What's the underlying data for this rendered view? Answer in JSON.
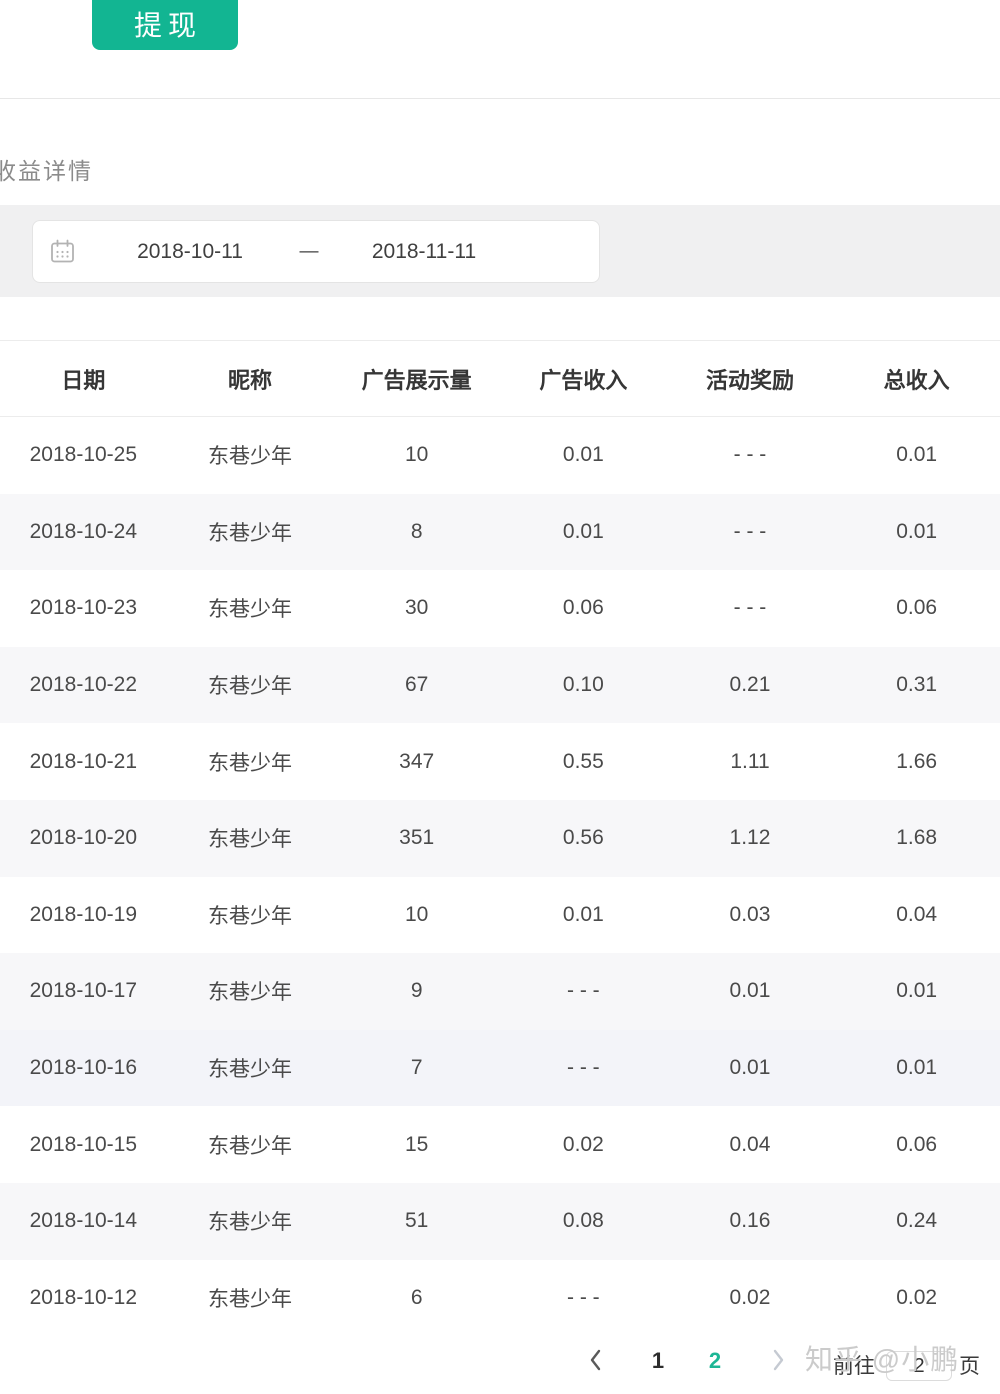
{
  "header": {
    "withdraw_button": "提现",
    "section_title": "收益详情"
  },
  "date_filter": {
    "start": "2018-10-11",
    "separator": "—",
    "end": "2018-11-11",
    "icon": "calendar-icon"
  },
  "table": {
    "columns": [
      "日期",
      "昵称",
      "广告展示量",
      "广告收入",
      "活动奖励",
      "总收入"
    ],
    "rows": [
      {
        "date": "2018-10-25",
        "nickname": "东巷少年",
        "impressions": "10",
        "ad_income": "0.01",
        "activity_reward": "- - -",
        "total_income": "0.01",
        "bg": "#ffffff"
      },
      {
        "date": "2018-10-24",
        "nickname": "东巷少年",
        "impressions": "8",
        "ad_income": "0.01",
        "activity_reward": "- - -",
        "total_income": "0.01",
        "bg": "#f7f7f9"
      },
      {
        "date": "2018-10-23",
        "nickname": "东巷少年",
        "impressions": "30",
        "ad_income": "0.06",
        "activity_reward": "- - -",
        "total_income": "0.06",
        "bg": "#ffffff"
      },
      {
        "date": "2018-10-22",
        "nickname": "东巷少年",
        "impressions": "67",
        "ad_income": "0.10",
        "activity_reward": "0.21",
        "total_income": "0.31",
        "bg": "#f7f7f9"
      },
      {
        "date": "2018-10-21",
        "nickname": "东巷少年",
        "impressions": "347",
        "ad_income": "0.55",
        "activity_reward": "1.11",
        "total_income": "1.66",
        "bg": "#ffffff"
      },
      {
        "date": "2018-10-20",
        "nickname": "东巷少年",
        "impressions": "351",
        "ad_income": "0.56",
        "activity_reward": "1.12",
        "total_income": "1.68",
        "bg": "#f7f7f9"
      },
      {
        "date": "2018-10-19",
        "nickname": "东巷少年",
        "impressions": "10",
        "ad_income": "0.01",
        "activity_reward": "0.03",
        "total_income": "0.04",
        "bg": "#ffffff"
      },
      {
        "date": "2018-10-17",
        "nickname": "东巷少年",
        "impressions": "9",
        "ad_income": "- - -",
        "activity_reward": "0.01",
        "total_income": "0.01",
        "bg": "#f7f7f9"
      },
      {
        "date": "2018-10-16",
        "nickname": "东巷少年",
        "impressions": "7",
        "ad_income": "- - -",
        "activity_reward": "0.01",
        "total_income": "0.01",
        "bg": "#f3f4f9"
      },
      {
        "date": "2018-10-15",
        "nickname": "东巷少年",
        "impressions": "15",
        "ad_income": "0.02",
        "activity_reward": "0.04",
        "total_income": "0.06",
        "bg": "#ffffff"
      },
      {
        "date": "2018-10-14",
        "nickname": "东巷少年",
        "impressions": "51",
        "ad_income": "0.08",
        "activity_reward": "0.16",
        "total_income": "0.24",
        "bg": "#f7f7f9"
      },
      {
        "date": "2018-10-12",
        "nickname": "东巷少年",
        "impressions": "6",
        "ad_income": "- - -",
        "activity_reward": "0.02",
        "total_income": "0.02",
        "bg": "#ffffff"
      }
    ]
  },
  "pagination": {
    "prev_icon": "chevron-left-icon",
    "next_icon": "chevron-right-icon",
    "pages": [
      {
        "label": "1",
        "active": false
      },
      {
        "label": "2",
        "active": true
      }
    ],
    "goto_label": "前往",
    "goto_value": "2",
    "page_suffix": "页"
  },
  "watermark": "知乎 @小鹏",
  "colors": {
    "accent_teal": "#12b592",
    "active_page_teal": "#1db695",
    "filter_band": "#f0f0f1",
    "row_stripe": "#f7f7f9",
    "watermark_gray": "#cbcbcb"
  }
}
